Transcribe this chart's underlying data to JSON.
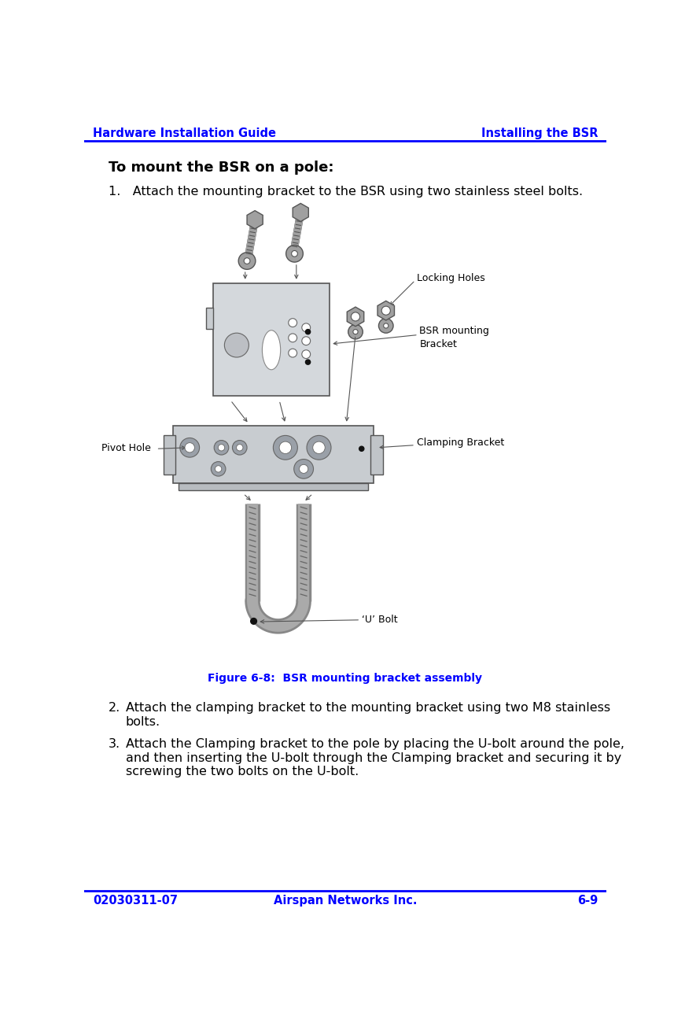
{
  "header_left": "Hardware Installation Guide",
  "header_right": "Installing the BSR",
  "header_color": "#0000FF",
  "header_line_color": "#0000FF",
  "footer_left": "02030311-07",
  "footer_center": "Airspan Networks Inc.",
  "footer_right": "6-9",
  "footer_color": "#0000FF",
  "footer_line_color": "#0000FF",
  "section_title": "To mount the BSR on a pole:",
  "step1": "1.   Attach the mounting bracket to the BSR using two stainless steel bolts.",
  "step2_num": "2.",
  "step2_text": "Attach the clamping bracket to the mounting bracket using two M8 stainless\nbolts.",
  "step3_num": "3.",
  "step3_text": "Attach the Clamping bracket to the pole by placing the U-bolt around the pole,\nand then inserting the U-bolt through the Clamping bracket and securing it by\nscrewing the two bolts on the U-bolt.",
  "figure_caption": "Figure 6-8:  BSR mounting bracket assembly",
  "figure_caption_color": "#0000FF",
  "label_pivot_hole": "Pivot Hole",
  "label_u_bolt": "‘U’ Bolt",
  "label_locking_holes": "Locking Holes",
  "label_bsr_mounting": "BSR mounting\nBracket",
  "label_clamping_bracket": "Clamping Bracket",
  "bg_color": "#FFFFFF",
  "text_color": "#000000",
  "body_font_size": 11.5,
  "header_font_size": 10.5,
  "section_title_font_size": 13,
  "figure_caption_font_size": 10,
  "bracket_fill": "#D0D4D8",
  "bracket_edge": "#555555",
  "bolt_fill": "#A0A0A0",
  "bolt_edge": "#555555",
  "ubolt_fill": "#C0C0C0",
  "arrow_color": "#555555"
}
